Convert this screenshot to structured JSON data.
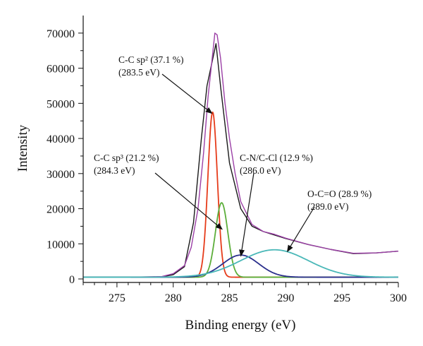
{
  "chart_data": {
    "type": "line",
    "title": "",
    "xlabel": "Binding energy (eV)",
    "ylabel": "Intensity",
    "xlim": [
      272,
      300
    ],
    "ylim": [
      -1000,
      75000
    ],
    "xticks": [
      275,
      280,
      285,
      290,
      295,
      300
    ],
    "yticks": [
      0,
      10000,
      20000,
      30000,
      40000,
      50000,
      60000,
      70000
    ],
    "grid": false,
    "legend": "none",
    "series": [
      {
        "role": "measured",
        "color": "#1a1a1a",
        "x": [
          272,
          276,
          279,
          280,
          281,
          281.8,
          282.5,
          283,
          283.4,
          283.8,
          284.2,
          285,
          286,
          287,
          288,
          289,
          290,
          292,
          294,
          296,
          298,
          300
        ],
        "y": [
          500,
          500,
          600,
          1200,
          3500,
          16000,
          40000,
          55000,
          61000,
          67000,
          55000,
          33000,
          20000,
          15000,
          13500,
          12500,
          11500,
          9800,
          8400,
          7200,
          7400,
          7900
        ]
      },
      {
        "role": "envelope",
        "color": "#9b3fa6",
        "x": [
          272,
          276,
          279,
          280,
          281,
          281.6,
          282.2,
          282.7,
          283.1,
          283.5,
          283.7,
          283.9,
          284.2,
          284.6,
          285,
          285.5,
          286,
          287,
          288,
          289,
          290,
          292,
          294,
          296,
          298,
          300
        ],
        "y": [
          500,
          500,
          700,
          1500,
          3800,
          9000,
          20000,
          36000,
          52000,
          64000,
          70000,
          69500,
          63000,
          50000,
          40000,
          30000,
          22000,
          15500,
          13500,
          12700,
          11600,
          9800,
          8400,
          7300,
          7400,
          7900
        ]
      },
      {
        "role": "peak",
        "color": "#e63b1a",
        "center": 283.5,
        "height": 47000,
        "sigma": 0.42,
        "baseline": 500
      },
      {
        "role": "peak",
        "color": "#5cae3a",
        "center": 284.3,
        "height": 21200,
        "sigma": 0.55,
        "baseline": 500
      },
      {
        "role": "peak",
        "color": "#2a2f8c",
        "center": 286.0,
        "height": 6300,
        "sigma": 1.6,
        "baseline": 500
      },
      {
        "role": "peak",
        "color": "#4ab8b8",
        "center": 289.0,
        "height": 7800,
        "sigma": 3.0,
        "baseline": 500
      }
    ],
    "annotations": [
      {
        "line1": "C-C sp² (37.1 %)",
        "line2": "(283.5 eV)",
        "target": [
          283.5,
          47000
        ]
      },
      {
        "line1": "C-C sp³ (21.2 %)",
        "line2": "(284.3 eV)",
        "target": [
          284.4,
          14000
        ]
      },
      {
        "line1": "C-N/C-Cl (12.9 %)",
        "line2": "(286.0 eV)",
        "target": [
          286.0,
          6300
        ]
      },
      {
        "line1": "O-C=O (28.9 %)",
        "line2": "(289.0 eV)",
        "target": [
          290.1,
          7600
        ]
      }
    ]
  }
}
